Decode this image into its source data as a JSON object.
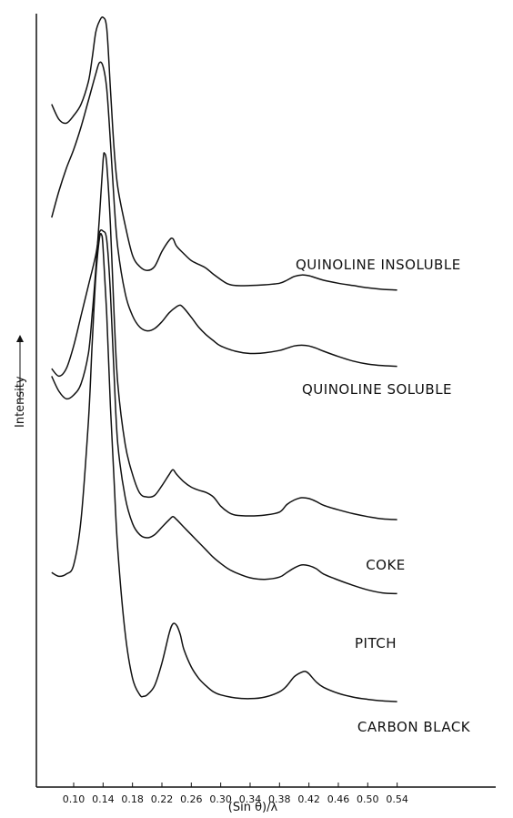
{
  "chart_data": {
    "type": "line",
    "xlabel": "(Sin θ)/λ",
    "ylabel": "Intensity",
    "x_ticks": [
      "0.10",
      "0.14",
      "0.18",
      "0.22",
      "0.26",
      "0.30",
      "0.34",
      "0.38",
      "0.42",
      "0.46",
      "0.50",
      "0.54"
    ],
    "xlim": [
      0.06,
      0.54
    ],
    "grid": false,
    "legend": "none",
    "series": [
      {
        "name": "QUINOLINE INSOLUBLE",
        "points": [
          [
            0.07,
            0.88
          ],
          [
            0.08,
            0.86
          ],
          [
            0.09,
            0.855
          ],
          [
            0.1,
            0.865
          ],
          [
            0.11,
            0.88
          ],
          [
            0.12,
            0.91
          ],
          [
            0.125,
            0.94
          ],
          [
            0.13,
            0.975
          ],
          [
            0.135,
            0.99
          ],
          [
            0.14,
            0.995
          ],
          [
            0.145,
            0.98
          ],
          [
            0.15,
            0.9
          ],
          [
            0.155,
            0.82
          ],
          [
            0.16,
            0.77
          ],
          [
            0.17,
            0.72
          ],
          [
            0.18,
            0.68
          ],
          [
            0.19,
            0.665
          ],
          [
            0.2,
            0.66
          ],
          [
            0.21,
            0.665
          ],
          [
            0.22,
            0.685
          ],
          [
            0.23,
            0.7
          ],
          [
            0.235,
            0.702
          ],
          [
            0.24,
            0.692
          ],
          [
            0.25,
            0.682
          ],
          [
            0.26,
            0.673
          ],
          [
            0.27,
            0.668
          ],
          [
            0.28,
            0.663
          ],
          [
            0.29,
            0.655
          ],
          [
            0.3,
            0.648
          ],
          [
            0.31,
            0.642
          ],
          [
            0.32,
            0.64
          ],
          [
            0.34,
            0.64
          ],
          [
            0.36,
            0.641
          ],
          [
            0.38,
            0.643
          ],
          [
            0.39,
            0.647
          ],
          [
            0.4,
            0.652
          ],
          [
            0.41,
            0.654
          ],
          [
            0.42,
            0.653
          ],
          [
            0.43,
            0.65
          ],
          [
            0.44,
            0.647
          ],
          [
            0.46,
            0.643
          ],
          [
            0.48,
            0.64
          ],
          [
            0.5,
            0.637
          ],
          [
            0.52,
            0.635
          ],
          [
            0.54,
            0.634
          ]
        ]
      },
      {
        "name": "QUINOLINE SOLUBLE",
        "points": [
          [
            0.07,
            0.73
          ],
          [
            0.08,
            0.765
          ],
          [
            0.09,
            0.795
          ],
          [
            0.1,
            0.82
          ],
          [
            0.11,
            0.85
          ],
          [
            0.12,
            0.885
          ],
          [
            0.13,
            0.92
          ],
          [
            0.135,
            0.935
          ],
          [
            0.14,
            0.93
          ],
          [
            0.145,
            0.9
          ],
          [
            0.15,
            0.83
          ],
          [
            0.155,
            0.75
          ],
          [
            0.16,
            0.69
          ],
          [
            0.17,
            0.63
          ],
          [
            0.18,
            0.6
          ],
          [
            0.19,
            0.585
          ],
          [
            0.2,
            0.58
          ],
          [
            0.21,
            0.583
          ],
          [
            0.22,
            0.592
          ],
          [
            0.23,
            0.604
          ],
          [
            0.24,
            0.612
          ],
          [
            0.245,
            0.614
          ],
          [
            0.25,
            0.61
          ],
          [
            0.26,
            0.598
          ],
          [
            0.27,
            0.585
          ],
          [
            0.28,
            0.575
          ],
          [
            0.29,
            0.567
          ],
          [
            0.3,
            0.56
          ],
          [
            0.32,
            0.553
          ],
          [
            0.34,
            0.55
          ],
          [
            0.36,
            0.551
          ],
          [
            0.38,
            0.554
          ],
          [
            0.39,
            0.557
          ],
          [
            0.4,
            0.56
          ],
          [
            0.41,
            0.561
          ],
          [
            0.42,
            0.56
          ],
          [
            0.43,
            0.557
          ],
          [
            0.44,
            0.553
          ],
          [
            0.46,
            0.546
          ],
          [
            0.48,
            0.54
          ],
          [
            0.5,
            0.536
          ],
          [
            0.52,
            0.534
          ],
          [
            0.54,
            0.533
          ]
        ]
      },
      {
        "name": "COKE",
        "points": [
          [
            0.07,
            0.52
          ],
          [
            0.08,
            0.5
          ],
          [
            0.09,
            0.49
          ],
          [
            0.1,
            0.495
          ],
          [
            0.11,
            0.51
          ],
          [
            0.12,
            0.55
          ],
          [
            0.125,
            0.6
          ],
          [
            0.13,
            0.66
          ],
          [
            0.135,
            0.73
          ],
          [
            0.14,
            0.805
          ],
          [
            0.142,
            0.815
          ],
          [
            0.145,
            0.8
          ],
          [
            0.15,
            0.72
          ],
          [
            0.155,
            0.6
          ],
          [
            0.16,
            0.51
          ],
          [
            0.17,
            0.43
          ],
          [
            0.18,
            0.39
          ],
          [
            0.19,
            0.365
          ],
          [
            0.2,
            0.36
          ],
          [
            0.21,
            0.362
          ],
          [
            0.22,
            0.375
          ],
          [
            0.23,
            0.39
          ],
          [
            0.235,
            0.396
          ],
          [
            0.24,
            0.39
          ],
          [
            0.25,
            0.38
          ],
          [
            0.26,
            0.373
          ],
          [
            0.27,
            0.369
          ],
          [
            0.28,
            0.366
          ],
          [
            0.29,
            0.36
          ],
          [
            0.3,
            0.348
          ],
          [
            0.31,
            0.34
          ],
          [
            0.32,
            0.336
          ],
          [
            0.34,
            0.335
          ],
          [
            0.36,
            0.336
          ],
          [
            0.38,
            0.34
          ],
          [
            0.39,
            0.35
          ],
          [
            0.4,
            0.356
          ],
          [
            0.41,
            0.359
          ],
          [
            0.42,
            0.358
          ],
          [
            0.43,
            0.354
          ],
          [
            0.44,
            0.349
          ],
          [
            0.46,
            0.343
          ],
          [
            0.48,
            0.338
          ],
          [
            0.5,
            0.334
          ],
          [
            0.52,
            0.331
          ],
          [
            0.54,
            0.33
          ]
        ]
      },
      {
        "name": "PITCH",
        "points": [
          [
            0.07,
            0.53
          ],
          [
            0.08,
            0.52
          ],
          [
            0.09,
            0.53
          ],
          [
            0.1,
            0.56
          ],
          [
            0.11,
            0.6
          ],
          [
            0.12,
            0.64
          ],
          [
            0.13,
            0.68
          ],
          [
            0.135,
            0.71
          ],
          [
            0.14,
            0.712
          ],
          [
            0.145,
            0.7
          ],
          [
            0.15,
            0.63
          ],
          [
            0.155,
            0.52
          ],
          [
            0.16,
            0.43
          ],
          [
            0.17,
            0.36
          ],
          [
            0.18,
            0.325
          ],
          [
            0.19,
            0.31
          ],
          [
            0.2,
            0.306
          ],
          [
            0.21,
            0.31
          ],
          [
            0.22,
            0.32
          ],
          [
            0.23,
            0.33
          ],
          [
            0.235,
            0.334
          ],
          [
            0.24,
            0.33
          ],
          [
            0.25,
            0.32
          ],
          [
            0.26,
            0.31
          ],
          [
            0.27,
            0.3
          ],
          [
            0.28,
            0.29
          ],
          [
            0.29,
            0.28
          ],
          [
            0.3,
            0.272
          ],
          [
            0.31,
            0.265
          ],
          [
            0.32,
            0.26
          ],
          [
            0.34,
            0.253
          ],
          [
            0.36,
            0.251
          ],
          [
            0.38,
            0.254
          ],
          [
            0.39,
            0.26
          ],
          [
            0.4,
            0.266
          ],
          [
            0.41,
            0.27
          ],
          [
            0.42,
            0.269
          ],
          [
            0.43,
            0.265
          ],
          [
            0.44,
            0.258
          ],
          [
            0.46,
            0.25
          ],
          [
            0.48,
            0.243
          ],
          [
            0.5,
            0.237
          ],
          [
            0.52,
            0.233
          ],
          [
            0.54,
            0.232
          ]
        ]
      },
      {
        "name": "CARBON BLACK",
        "points": [
          [
            0.07,
            0.26
          ],
          [
            0.08,
            0.255
          ],
          [
            0.09,
            0.258
          ],
          [
            0.1,
            0.27
          ],
          [
            0.11,
            0.33
          ],
          [
            0.12,
            0.46
          ],
          [
            0.125,
            0.56
          ],
          [
            0.13,
            0.65
          ],
          [
            0.135,
            0.702
          ],
          [
            0.138,
            0.707
          ],
          [
            0.14,
            0.69
          ],
          [
            0.145,
            0.6
          ],
          [
            0.15,
            0.48
          ],
          [
            0.155,
            0.38
          ],
          [
            0.16,
            0.29
          ],
          [
            0.17,
            0.18
          ],
          [
            0.18,
            0.12
          ],
          [
            0.19,
            0.098
          ],
          [
            0.195,
            0.096
          ],
          [
            0.2,
            0.098
          ],
          [
            0.21,
            0.11
          ],
          [
            0.22,
            0.14
          ],
          [
            0.23,
            0.18
          ],
          [
            0.235,
            0.192
          ],
          [
            0.24,
            0.19
          ],
          [
            0.245,
            0.178
          ],
          [
            0.25,
            0.158
          ],
          [
            0.26,
            0.135
          ],
          [
            0.27,
            0.12
          ],
          [
            0.28,
            0.11
          ],
          [
            0.29,
            0.102
          ],
          [
            0.3,
            0.098
          ],
          [
            0.32,
            0.094
          ],
          [
            0.34,
            0.093
          ],
          [
            0.36,
            0.095
          ],
          [
            0.38,
            0.102
          ],
          [
            0.39,
            0.11
          ],
          [
            0.4,
            0.122
          ],
          [
            0.41,
            0.128
          ],
          [
            0.415,
            0.129
          ],
          [
            0.42,
            0.126
          ],
          [
            0.43,
            0.115
          ],
          [
            0.44,
            0.108
          ],
          [
            0.46,
            0.1
          ],
          [
            0.48,
            0.095
          ],
          [
            0.5,
            0.092
          ],
          [
            0.52,
            0.09
          ],
          [
            0.54,
            0.089
          ]
        ]
      }
    ]
  }
}
